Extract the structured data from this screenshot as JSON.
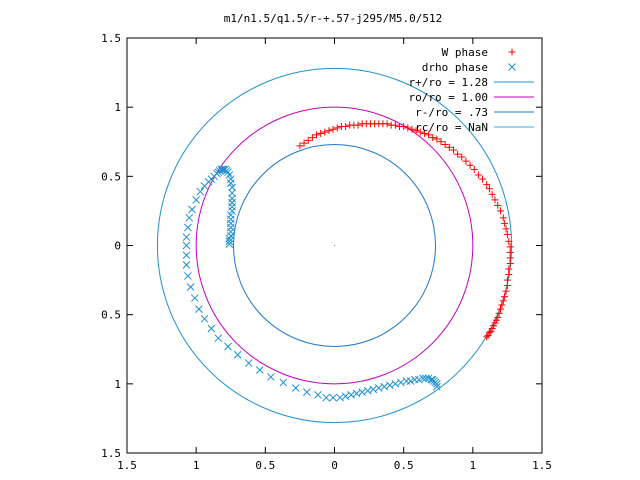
{
  "chart_data": {
    "type": "scatter",
    "title": "m1/n1.5/q1.5/r-+.57-j295/M5.0/512",
    "xlim": [
      -1.5,
      1.5
    ],
    "ylim": [
      -1.5,
      1.5
    ],
    "x_ticks": [
      -1.5,
      -1,
      -0.5,
      0,
      0.5,
      1,
      1.5
    ],
    "y_ticks": [
      -1.5,
      -1,
      -0.5,
      0,
      0.5,
      1,
      1.5
    ],
    "x_tick_labels": [
      "1.5",
      "1",
      "0.5",
      "0",
      "0.5",
      "1",
      "1.5"
    ],
    "y_tick_labels": [
      "1.5",
      "1",
      "0.5",
      "0",
      "0.5",
      "1",
      "1.5"
    ],
    "grid": false,
    "legend_position": "top-right",
    "legend": [
      {
        "label": "W phase",
        "marker": "+",
        "color": "#ff0000"
      },
      {
        "label": "drho phase",
        "marker": "x",
        "color": "#1e90d0"
      },
      {
        "label": "r+/ro = 1.28",
        "marker": "line",
        "color": "#1e90d0"
      },
      {
        "label": "ro/ro = 1.00",
        "marker": "line",
        "color": "#c000c0"
      },
      {
        "label": "r-/ro = .73",
        "marker": "line",
        "color": "#1e78c8"
      },
      {
        "label": "rc/ro = NaN",
        "marker": "line",
        "color": "#30b0e0"
      }
    ],
    "circles": [
      {
        "name": "r+/ro",
        "radius": 1.28,
        "color": "#1e90d0"
      },
      {
        "name": "ro/ro",
        "radius": 1.0,
        "color": "#c000c0"
      },
      {
        "name": "r-/ro",
        "radius": 0.73,
        "color": "#1e78c8"
      }
    ],
    "series": [
      {
        "name": "W phase",
        "marker": "+",
        "color": "#ff0000",
        "x": [
          -0.25,
          -0.22,
          -0.19,
          -0.16,
          -0.13,
          -0.1,
          -0.07,
          -0.04,
          -0.01,
          0.02,
          0.05,
          0.08,
          0.11,
          0.14,
          0.17,
          0.2,
          0.23,
          0.26,
          0.29,
          0.32,
          0.35,
          0.38,
          0.41,
          0.44,
          0.47,
          0.5,
          0.53,
          0.56,
          0.59,
          0.62,
          0.65,
          0.68,
          0.71,
          0.74,
          0.77,
          0.8,
          0.83,
          0.86,
          0.89,
          0.92,
          0.95,
          0.98,
          1.01,
          1.04,
          1.07,
          1.1,
          1.12,
          1.14,
          1.16,
          1.18,
          1.2,
          1.22,
          1.23,
          1.24,
          1.25,
          1.26,
          1.27,
          1.27,
          1.27,
          1.27,
          1.26,
          1.26,
          1.25,
          1.25,
          1.24,
          1.23,
          1.22,
          1.21,
          1.2,
          1.19,
          1.18,
          1.17,
          1.16,
          1.15,
          1.14,
          1.13,
          1.12,
          1.11,
          1.1
        ],
        "y": [
          0.72,
          0.74,
          0.76,
          0.78,
          0.8,
          0.81,
          0.82,
          0.83,
          0.84,
          0.85,
          0.86,
          0.86,
          0.87,
          0.87,
          0.87,
          0.88,
          0.88,
          0.88,
          0.88,
          0.88,
          0.88,
          0.88,
          0.87,
          0.87,
          0.86,
          0.86,
          0.85,
          0.84,
          0.83,
          0.82,
          0.81,
          0.8,
          0.78,
          0.77,
          0.75,
          0.73,
          0.71,
          0.69,
          0.66,
          0.64,
          0.61,
          0.58,
          0.55,
          0.51,
          0.48,
          0.44,
          0.41,
          0.37,
          0.33,
          0.29,
          0.25,
          0.2,
          0.16,
          0.12,
          0.08,
          0.03,
          -0.01,
          -0.05,
          -0.09,
          -0.13,
          -0.17,
          -0.21,
          -0.25,
          -0.29,
          -0.33,
          -0.37,
          -0.4,
          -0.43,
          -0.46,
          -0.49,
          -0.52,
          -0.54,
          -0.56,
          -0.58,
          -0.6,
          -0.62,
          -0.63,
          -0.65,
          -0.66
        ]
      },
      {
        "name": "drho phase",
        "marker": "x",
        "color": "#1e90d0",
        "x": [
          -0.76,
          -0.76,
          -0.76,
          -0.75,
          -0.75,
          -0.75,
          -0.75,
          -0.75,
          -0.75,
          -0.74,
          -0.74,
          -0.74,
          -0.74,
          -0.74,
          -0.74,
          -0.75,
          -0.75,
          -0.76,
          -0.77,
          -0.78,
          -0.79,
          -0.8,
          -0.81,
          -0.82,
          -0.83,
          -0.84,
          -0.85,
          -0.87,
          -0.89,
          -0.91,
          -0.94,
          -0.97,
          -1.0,
          -1.03,
          -1.05,
          -1.06,
          -1.07,
          -1.07,
          -1.07,
          -1.07,
          -1.06,
          -1.04,
          -1.01,
          -0.98,
          -0.94,
          -0.89,
          -0.84,
          -0.77,
          -0.7,
          -0.62,
          -0.54,
          -0.46,
          -0.37,
          -0.28,
          -0.2,
          -0.12,
          -0.06,
          -0.01,
          0.04,
          0.08,
          0.12,
          0.16,
          0.2,
          0.24,
          0.28,
          0.32,
          0.36,
          0.4,
          0.44,
          0.48,
          0.52,
          0.55,
          0.58,
          0.61,
          0.64,
          0.66,
          0.68,
          0.7,
          0.71,
          0.72,
          0.73,
          0.74,
          0.74
        ],
        "y": [
          0.01,
          0.03,
          0.05,
          0.07,
          0.1,
          0.13,
          0.16,
          0.19,
          0.22,
          0.25,
          0.28,
          0.31,
          0.34,
          0.38,
          0.42,
          0.45,
          0.48,
          0.51,
          0.53,
          0.54,
          0.55,
          0.55,
          0.55,
          0.55,
          0.54,
          0.53,
          0.52,
          0.5,
          0.48,
          0.46,
          0.43,
          0.39,
          0.33,
          0.26,
          0.2,
          0.13,
          0.06,
          0.0,
          -0.07,
          -0.14,
          -0.22,
          -0.3,
          -0.38,
          -0.46,
          -0.53,
          -0.6,
          -0.67,
          -0.73,
          -0.79,
          -0.85,
          -0.9,
          -0.95,
          -0.99,
          -1.03,
          -1.06,
          -1.08,
          -1.1,
          -1.1,
          -1.1,
          -1.09,
          -1.08,
          -1.07,
          -1.06,
          -1.05,
          -1.04,
          -1.03,
          -1.02,
          -1.01,
          -1.0,
          -0.99,
          -0.98,
          -0.98,
          -0.97,
          -0.97,
          -0.96,
          -0.96,
          -0.96,
          -0.97,
          -0.97,
          -0.98,
          -0.99,
          -1.0,
          -1.02
        ]
      }
    ]
  }
}
